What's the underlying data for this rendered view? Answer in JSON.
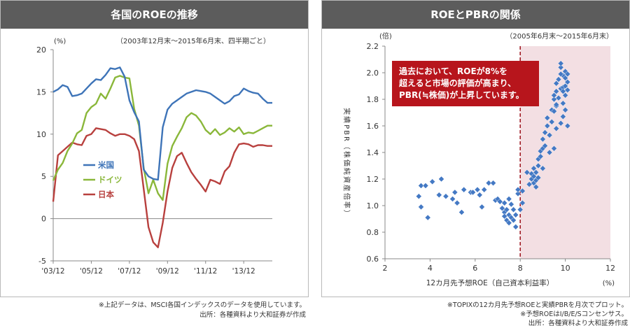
{
  "left": {
    "title": "各国のROEの推移",
    "unit": "(%)",
    "period": "（2003年12月末～2015年6月末、四半期ごと）",
    "note1": "※上記データは、MSCI各国インデックスのデータを使用しています。",
    "note2": "出所：各種資料より大和証券が作成"
  },
  "right": {
    "title": "ROEとPBRの関係",
    "unit": "(倍)",
    "period": "（2005年6月末～2015年6月末）",
    "callout": [
      "過去において、ROEが8%を",
      "超えると市場の評価が高まり、",
      "PBR(≒株価)が上昇しています。"
    ],
    "xlabel": "12カ月先予想ROE（自己資本利益率）",
    "xunit": "(%)",
    "ylabel": "実績PBR（株価純資産倍率）",
    "note1": "※TOPIXの12カ月先予想ROEと実績PBRを月次でプロット。",
    "note2": "※予想ROEはI/B/E/Sコンセンサス。",
    "note3": "出所：各種資料より大和証券作成"
  },
  "chart_data": [
    {
      "type": "line",
      "title": "各国のROEの推移",
      "ylabel": "(%)",
      "ylim": [
        -5,
        20
      ],
      "yticks": [
        -5,
        0,
        5,
        10,
        15,
        20
      ],
      "xticks": [
        "'03/12",
        "'05/12",
        "'07/12",
        "'09/12",
        "'11/12",
        "'13/12"
      ],
      "x": [
        "'03/12",
        "'04/3",
        "'04/6",
        "'04/9",
        "'04/12",
        "'05/3",
        "'05/6",
        "'05/9",
        "'05/12",
        "'06/3",
        "'06/6",
        "'06/9",
        "'06/12",
        "'07/3",
        "'07/6",
        "'07/9",
        "'07/12",
        "'08/3",
        "'08/6",
        "'08/9",
        "'08/12",
        "'09/3",
        "'09/6",
        "'09/9",
        "'09/12",
        "'10/3",
        "'10/6",
        "'10/9",
        "'10/12",
        "'11/3",
        "'11/6",
        "'11/9",
        "'11/12",
        "'12/3",
        "'12/6",
        "'12/9",
        "'12/12",
        "'13/3",
        "'13/6",
        "'13/9",
        "'13/12",
        "'14/3",
        "'14/6",
        "'14/9",
        "'14/12",
        "'15/3",
        "'15/6"
      ],
      "legend_position": "left",
      "grid": false,
      "series": [
        {
          "name": "米国",
          "color": "#3e74b8",
          "values": [
            15.0,
            15.3,
            15.8,
            15.6,
            14.5,
            14.6,
            14.8,
            15.4,
            16.0,
            16.5,
            16.4,
            17.0,
            17.8,
            17.7,
            17.9,
            16.8,
            14.0,
            12.6,
            11.5,
            5.8,
            5.0,
            4.7,
            4.6,
            10.8,
            12.9,
            13.6,
            14.0,
            14.4,
            14.8,
            15.0,
            15.2,
            15.1,
            15.0,
            14.8,
            14.4,
            14.0,
            13.6,
            13.9,
            14.5,
            14.7,
            15.4,
            15.1,
            14.9,
            14.8,
            14.2,
            13.7,
            13.7
          ]
        },
        {
          "name": "ドイツ",
          "color": "#8ab73a",
          "values": [
            4.5,
            5.8,
            6.6,
            8.0,
            8.9,
            10.1,
            10.5,
            12.5,
            13.2,
            13.6,
            14.8,
            14.2,
            15.4,
            16.7,
            16.9,
            16.7,
            16.6,
            13.0,
            11.0,
            6.0,
            3.0,
            4.6,
            3.0,
            2.2,
            6.5,
            8.6,
            9.7,
            10.7,
            12.0,
            12.5,
            12.2,
            11.5,
            10.5,
            10.0,
            10.6,
            9.9,
            10.2,
            10.7,
            10.3,
            10.8,
            10.0,
            10.2,
            10.1,
            10.4,
            10.7,
            11.0,
            11.0
          ]
        },
        {
          "name": "日本",
          "color": "#b8403e",
          "values": [
            2.0,
            7.5,
            8.0,
            8.5,
            9.0,
            8.8,
            8.7,
            9.8,
            10.0,
            10.7,
            10.6,
            10.5,
            10.1,
            9.8,
            10.0,
            10.0,
            9.8,
            9.4,
            8.0,
            3.5,
            -1.0,
            -2.8,
            -3.4,
            -0.5,
            3.2,
            6.0,
            7.4,
            7.8,
            6.6,
            5.5,
            4.7,
            4.0,
            3.2,
            4.6,
            4.4,
            4.1,
            5.6,
            6.2,
            7.8,
            8.8,
            8.9,
            8.8,
            8.5,
            8.7,
            8.7,
            8.6,
            8.6
          ]
        }
      ]
    },
    {
      "type": "scatter",
      "title": "ROEとPBRの関係",
      "xlabel": "12カ月先予想ROE（自己資本利益率）",
      "ylabel": "実績PBR（株価純資産倍率）",
      "xlim": [
        2,
        12
      ],
      "ylim": [
        0.6,
        2.2
      ],
      "xticks": [
        2,
        4,
        6,
        8,
        10,
        12
      ],
      "yticks": [
        0.6,
        0.8,
        1.0,
        1.2,
        1.4,
        1.6,
        1.8,
        2.0,
        2.2
      ],
      "threshold_x": 8,
      "points": [
        [
          3.5,
          1.07
        ],
        [
          3.6,
          0.99
        ],
        [
          3.6,
          1.15
        ],
        [
          3.8,
          1.15
        ],
        [
          3.9,
          0.91
        ],
        [
          4.1,
          1.18
        ],
        [
          4.5,
          1.2
        ],
        [
          4.4,
          1.08
        ],
        [
          4.7,
          1.07
        ],
        [
          5.0,
          1.05
        ],
        [
          5.1,
          1.1
        ],
        [
          5.2,
          1.02
        ],
        [
          5.4,
          0.95
        ],
        [
          5.5,
          1.12
        ],
        [
          5.8,
          1.1
        ],
        [
          5.9,
          1.1
        ],
        [
          6.1,
          1.12
        ],
        [
          6.2,
          1.08
        ],
        [
          6.4,
          1.12
        ],
        [
          6.3,
          0.99
        ],
        [
          6.6,
          1.17
        ],
        [
          6.8,
          1.17
        ],
        [
          6.9,
          1.04
        ],
        [
          7.0,
          1.05
        ],
        [
          7.1,
          1.03
        ],
        [
          7.2,
          0.98
        ],
        [
          7.3,
          1.02
        ],
        [
          7.3,
          0.95
        ],
        [
          7.3,
          0.92
        ],
        [
          7.4,
          0.89
        ],
        [
          7.4,
          0.97
        ],
        [
          7.5,
          1.05
        ],
        [
          7.5,
          0.93
        ],
        [
          7.5,
          0.87
        ],
        [
          7.6,
          1.01
        ],
        [
          7.6,
          0.91
        ],
        [
          7.7,
          0.89
        ],
        [
          7.7,
          0.97
        ],
        [
          7.8,
          0.93
        ],
        [
          7.8,
          0.84
        ],
        [
          7.9,
          1.09
        ],
        [
          7.9,
          1.12
        ],
        [
          8.0,
          0.97
        ],
        [
          8.1,
          1.02
        ],
        [
          8.1,
          1.11
        ],
        [
          8.3,
          1.25
        ],
        [
          8.4,
          1.16
        ],
        [
          8.5,
          1.2
        ],
        [
          8.5,
          1.24
        ],
        [
          8.6,
          1.22
        ],
        [
          8.6,
          1.17
        ],
        [
          8.6,
          1.28
        ],
        [
          8.7,
          1.14
        ],
        [
          8.7,
          1.19
        ],
        [
          8.7,
          1.25
        ],
        [
          8.8,
          1.21
        ],
        [
          8.8,
          1.3
        ],
        [
          8.8,
          1.35
        ],
        [
          8.9,
          1.37
        ],
        [
          8.9,
          1.41
        ],
        [
          9.0,
          1.28
        ],
        [
          9.0,
          1.43
        ],
        [
          9.0,
          1.5
        ],
        [
          9.1,
          1.45
        ],
        [
          9.1,
          1.55
        ],
        [
          9.2,
          1.6
        ],
        [
          9.2,
          1.66
        ],
        [
          9.3,
          1.4
        ],
        [
          9.3,
          1.53
        ],
        [
          9.4,
          1.63
        ],
        [
          9.4,
          1.72
        ],
        [
          9.5,
          1.8
        ],
        [
          9.5,
          1.43
        ],
        [
          9.6,
          1.58
        ],
        [
          9.6,
          1.75
        ],
        [
          9.6,
          1.86
        ],
        [
          9.6,
          1.92
        ],
        [
          9.7,
          1.81
        ],
        [
          9.7,
          1.95
        ],
        [
          9.8,
          2.04
        ],
        [
          9.8,
          1.88
        ],
        [
          9.8,
          1.62
        ],
        [
          9.8,
          2.07
        ],
        [
          9.9,
          1.67
        ],
        [
          9.9,
          1.89
        ],
        [
          9.9,
          1.98
        ],
        [
          9.9,
          1.77
        ],
        [
          10.0,
          1.83
        ],
        [
          10.0,
          1.9
        ],
        [
          10.0,
          2.01
        ],
        [
          10.0,
          1.72
        ],
        [
          10.1,
          1.93
        ],
        [
          10.1,
          1.87
        ],
        [
          10.1,
          1.6
        ],
        [
          9.7,
          1.95
        ],
        [
          9.6,
          1.76
        ],
        [
          9.5,
          1.71
        ],
        [
          9.9,
          1.86
        ],
        [
          10.0,
          1.96
        ],
        [
          10.1,
          1.99
        ],
        [
          9.8,
          1.99
        ],
        [
          9.5,
          1.83
        ]
      ]
    }
  ]
}
